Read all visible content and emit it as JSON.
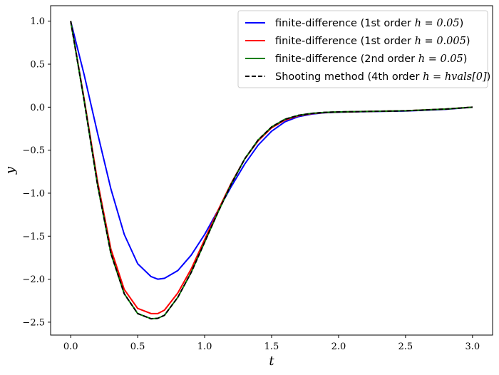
{
  "chart_data": {
    "type": "line",
    "title": "",
    "xlabel": "t",
    "ylabel": "y",
    "xlim": [
      -0.15,
      3.15
    ],
    "ylim": [
      -2.65,
      1.18
    ],
    "xticks": [
      0.0,
      0.5,
      1.0,
      1.5,
      2.0,
      2.5,
      3.0
    ],
    "xtick_labels": [
      "0.0",
      "0.5",
      "1.0",
      "1.5",
      "2.0",
      "2.5",
      "3.0"
    ],
    "yticks": [
      1.0,
      0.5,
      0.0,
      -0.5,
      -1.0,
      -1.5,
      -2.0,
      -2.5
    ],
    "ytick_labels": [
      "1.0",
      "0.5",
      "0.0",
      "−0.5",
      "−1.0",
      "−1.5",
      "−2.0",
      "−2.5"
    ],
    "grid": false,
    "legend_position": "top-right",
    "x": [
      0.0,
      0.1,
      0.2,
      0.3,
      0.4,
      0.5,
      0.6,
      0.65,
      0.7,
      0.8,
      0.9,
      1.0,
      1.1,
      1.2,
      1.3,
      1.4,
      1.5,
      1.6,
      1.7,
      1.8,
      1.9,
      2.0,
      2.2,
      2.5,
      2.8,
      3.0
    ],
    "series": [
      {
        "name": "finite-difference (1st order h = 0.05)",
        "color": "#0000ff",
        "dash": "solid",
        "values": [
          1.0,
          0.38,
          -0.3,
          -0.95,
          -1.48,
          -1.82,
          -1.97,
          -2.0,
          -1.99,
          -1.9,
          -1.72,
          -1.48,
          -1.2,
          -0.92,
          -0.66,
          -0.44,
          -0.28,
          -0.17,
          -0.11,
          -0.08,
          -0.065,
          -0.058,
          -0.052,
          -0.045,
          -0.025,
          0.0
        ]
      },
      {
        "name": "finite-difference (1st order h = 0.005)",
        "color": "#ff0000",
        "dash": "solid",
        "values": [
          1.0,
          0.1,
          -0.86,
          -1.65,
          -2.12,
          -2.34,
          -2.4,
          -2.4,
          -2.36,
          -2.16,
          -1.88,
          -1.54,
          -1.2,
          -0.88,
          -0.6,
          -0.39,
          -0.24,
          -0.15,
          -0.1,
          -0.075,
          -0.062,
          -0.056,
          -0.05,
          -0.042,
          -0.022,
          0.0
        ]
      },
      {
        "name": "finite-difference (2nd order h = 0.05)",
        "color": "#008000",
        "dash": "solid",
        "values": [
          1.0,
          0.08,
          -0.9,
          -1.7,
          -2.17,
          -2.4,
          -2.46,
          -2.455,
          -2.42,
          -2.21,
          -1.92,
          -1.57,
          -1.22,
          -0.89,
          -0.6,
          -0.38,
          -0.23,
          -0.14,
          -0.095,
          -0.072,
          -0.06,
          -0.055,
          -0.05,
          -0.042,
          -0.022,
          0.0
        ]
      },
      {
        "name": "Shooting method (4th order h = hvals[0])",
        "color": "#000000",
        "dash": "dashed",
        "values": [
          1.0,
          0.08,
          -0.9,
          -1.7,
          -2.17,
          -2.4,
          -2.46,
          -2.455,
          -2.42,
          -2.21,
          -1.92,
          -1.57,
          -1.22,
          -0.89,
          -0.6,
          -0.38,
          -0.23,
          -0.14,
          -0.095,
          -0.072,
          -0.06,
          -0.055,
          -0.05,
          -0.042,
          -0.022,
          0.0
        ]
      }
    ],
    "legend": [
      {
        "prefix": "finite-difference (1st order ",
        "math": "h = 0.05",
        "suffix": ")"
      },
      {
        "prefix": "finite-difference (1st order ",
        "math": "h = 0.005",
        "suffix": ")"
      },
      {
        "prefix": "finite-difference (2nd order ",
        "math": "h = 0.05",
        "suffix": ")"
      },
      {
        "prefix": "Shooting method (4th order ",
        "math": "h = hvals[0]",
        "suffix": ")"
      }
    ]
  }
}
